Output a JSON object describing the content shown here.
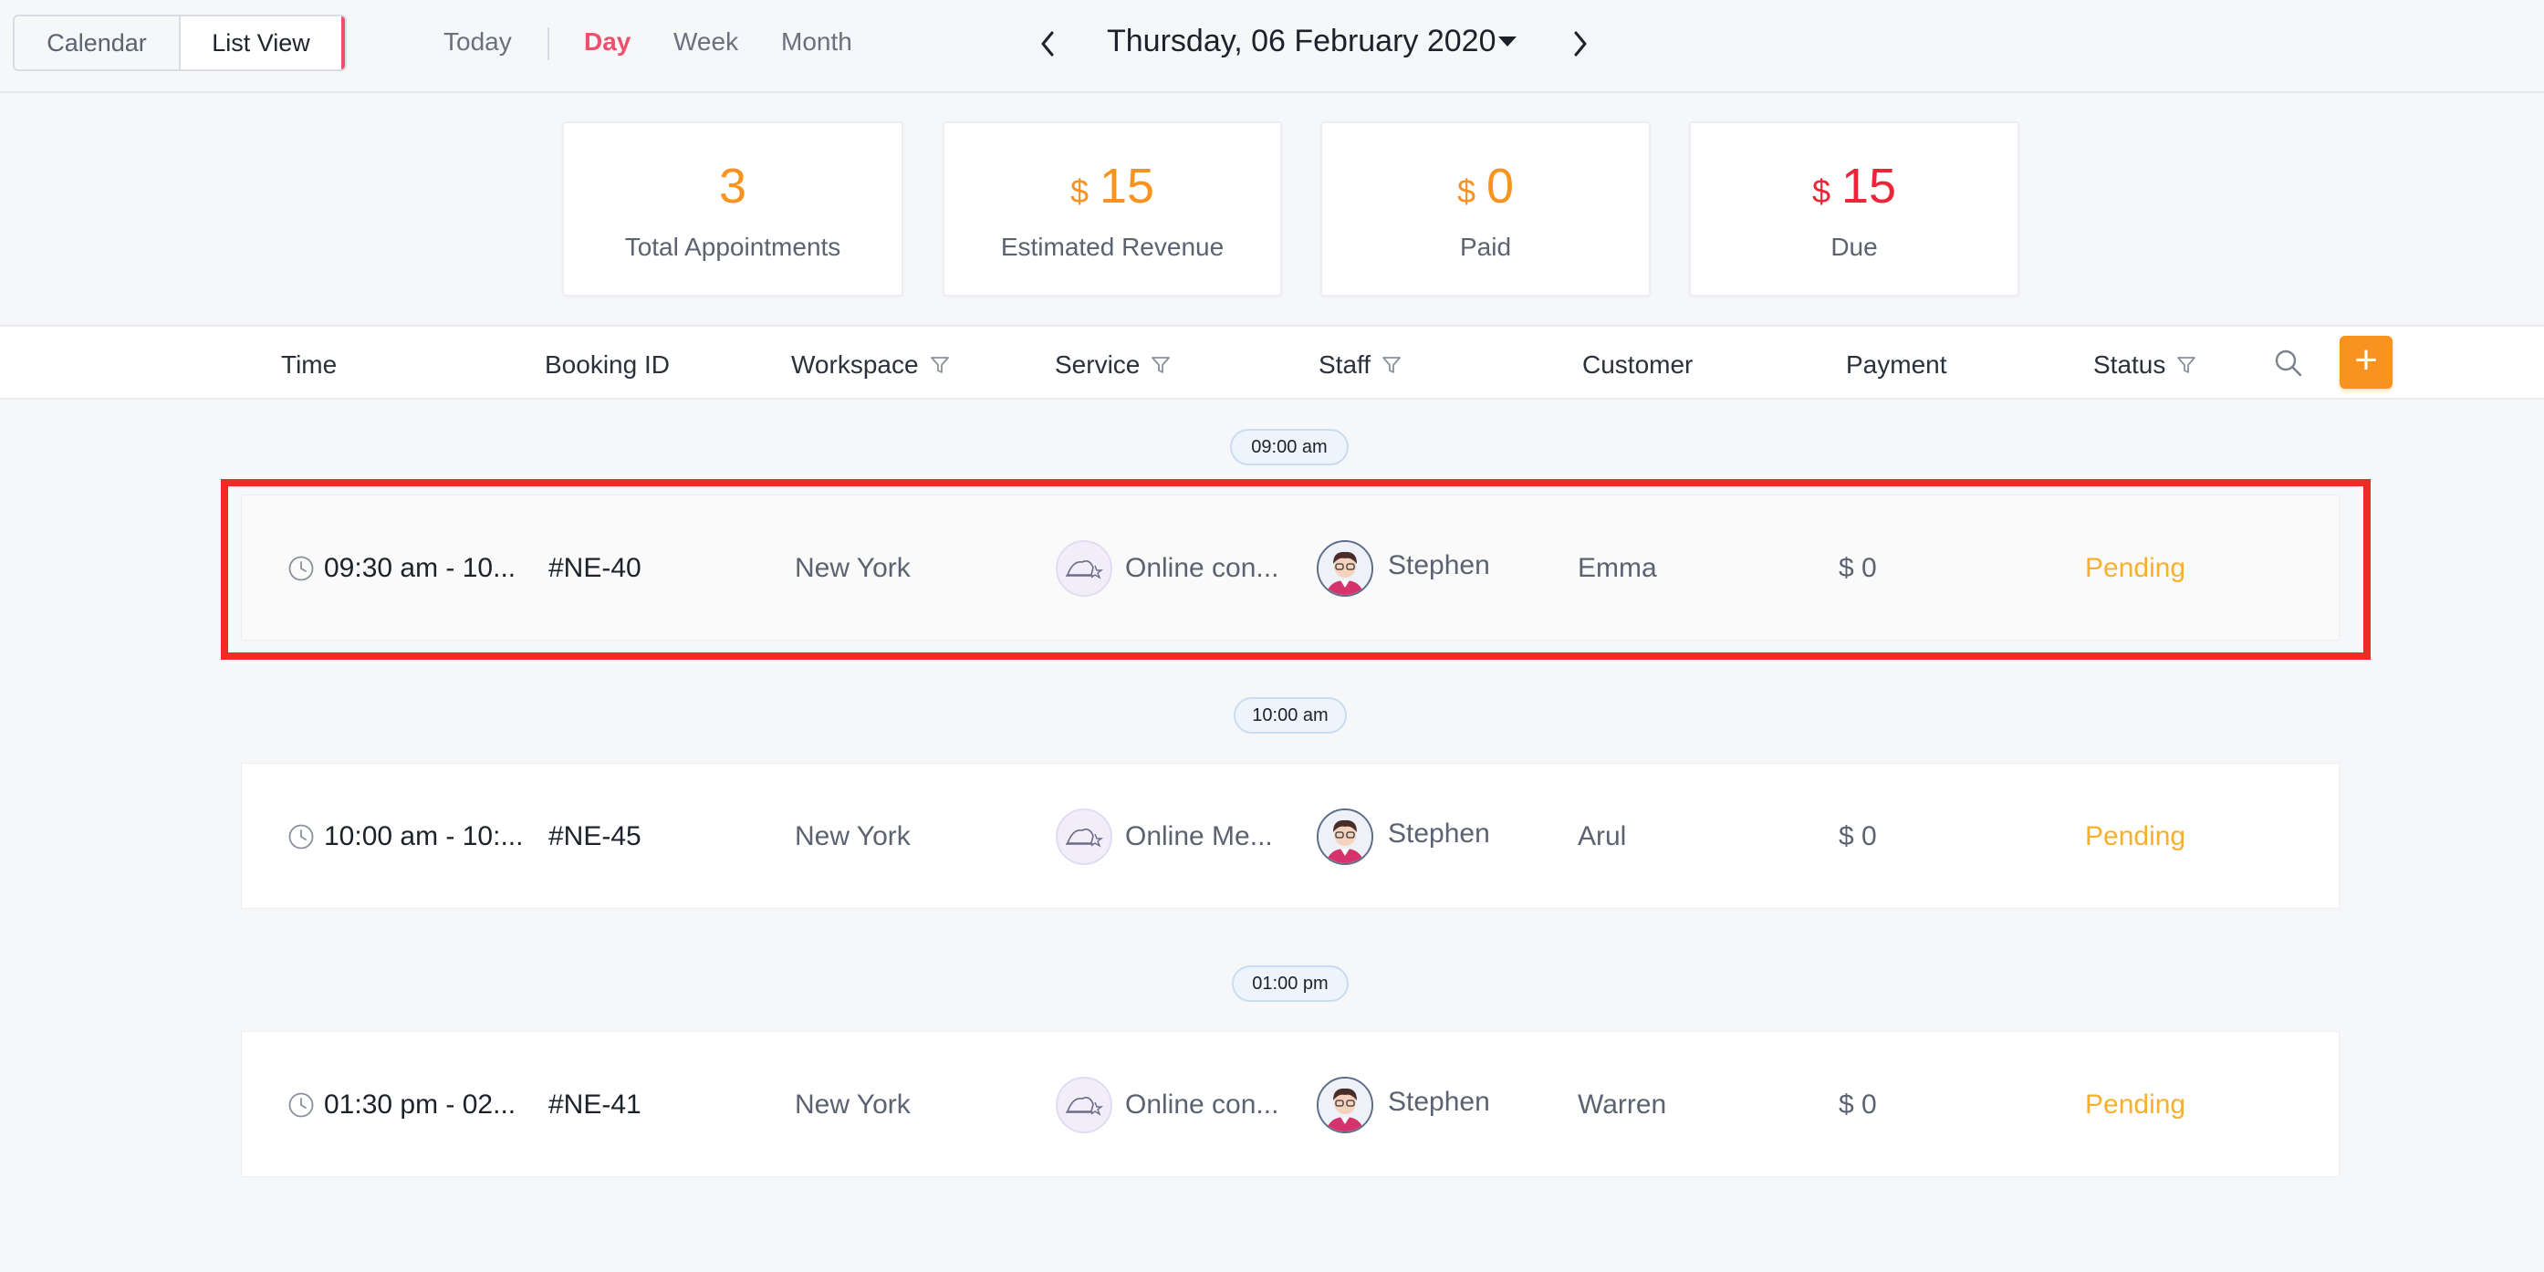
{
  "view_switch": {
    "calendar": "Calendar",
    "list": "List View"
  },
  "range_nav": {
    "today": "Today",
    "day": "Day",
    "week": "Week",
    "month": "Month"
  },
  "date_nav": {
    "title": "Thursday, 06 February 2020"
  },
  "summary": {
    "total": {
      "value": "3",
      "label": "Total Appointments"
    },
    "revenue": {
      "currency": "$",
      "value": "15",
      "label": "Estimated Revenue"
    },
    "paid": {
      "currency": "$",
      "value": "0",
      "label": "Paid"
    },
    "due": {
      "currency": "$",
      "value": "15",
      "label": "Due"
    }
  },
  "table": {
    "headers": {
      "time": "Time",
      "booking_id": "Booking ID",
      "workspace": "Workspace",
      "service": "Service",
      "staff": "Staff",
      "customer": "Customer",
      "payment": "Payment",
      "status": "Status"
    },
    "groups": [
      {
        "time_label": "09:00 am",
        "row": {
          "time": "09:30 am - 10...",
          "booking_id": "#NE-40",
          "workspace": "New York",
          "service": "Online con...",
          "staff": "Stephen",
          "customer": "Emma",
          "payment": "$ 0",
          "status": "Pending"
        }
      },
      {
        "time_label": "10:00 am",
        "row": {
          "time": "10:00 am - 10:...",
          "booking_id": "#NE-45",
          "workspace": "New York",
          "service": "Online Me...",
          "staff": "Stephen",
          "customer": "Arul",
          "payment": "$ 0",
          "status": "Pending"
        }
      },
      {
        "time_label": "01:00 pm",
        "row": {
          "time": "01:30 pm - 02...",
          "booking_id": "#NE-41",
          "workspace": "New York",
          "service": "Online con...",
          "staff": "Stephen",
          "customer": "Warren",
          "payment": "$ 0",
          "status": "Pending"
        }
      }
    ]
  },
  "icons": {
    "clock": "clock-icon",
    "filter": "filter-icon",
    "search": "search-icon",
    "add": "plus-icon",
    "service": "service-hat-icon",
    "avatar": "staff-avatar",
    "prev": "chevron-left-icon",
    "next": "chevron-right-icon",
    "caret": "caret-down-icon"
  },
  "colors": {
    "accent": "#f0506e",
    "orange": "#f7931e",
    "due_red": "#ee2438",
    "pending": "#f6b02e",
    "highlight": "#ee2b24"
  }
}
